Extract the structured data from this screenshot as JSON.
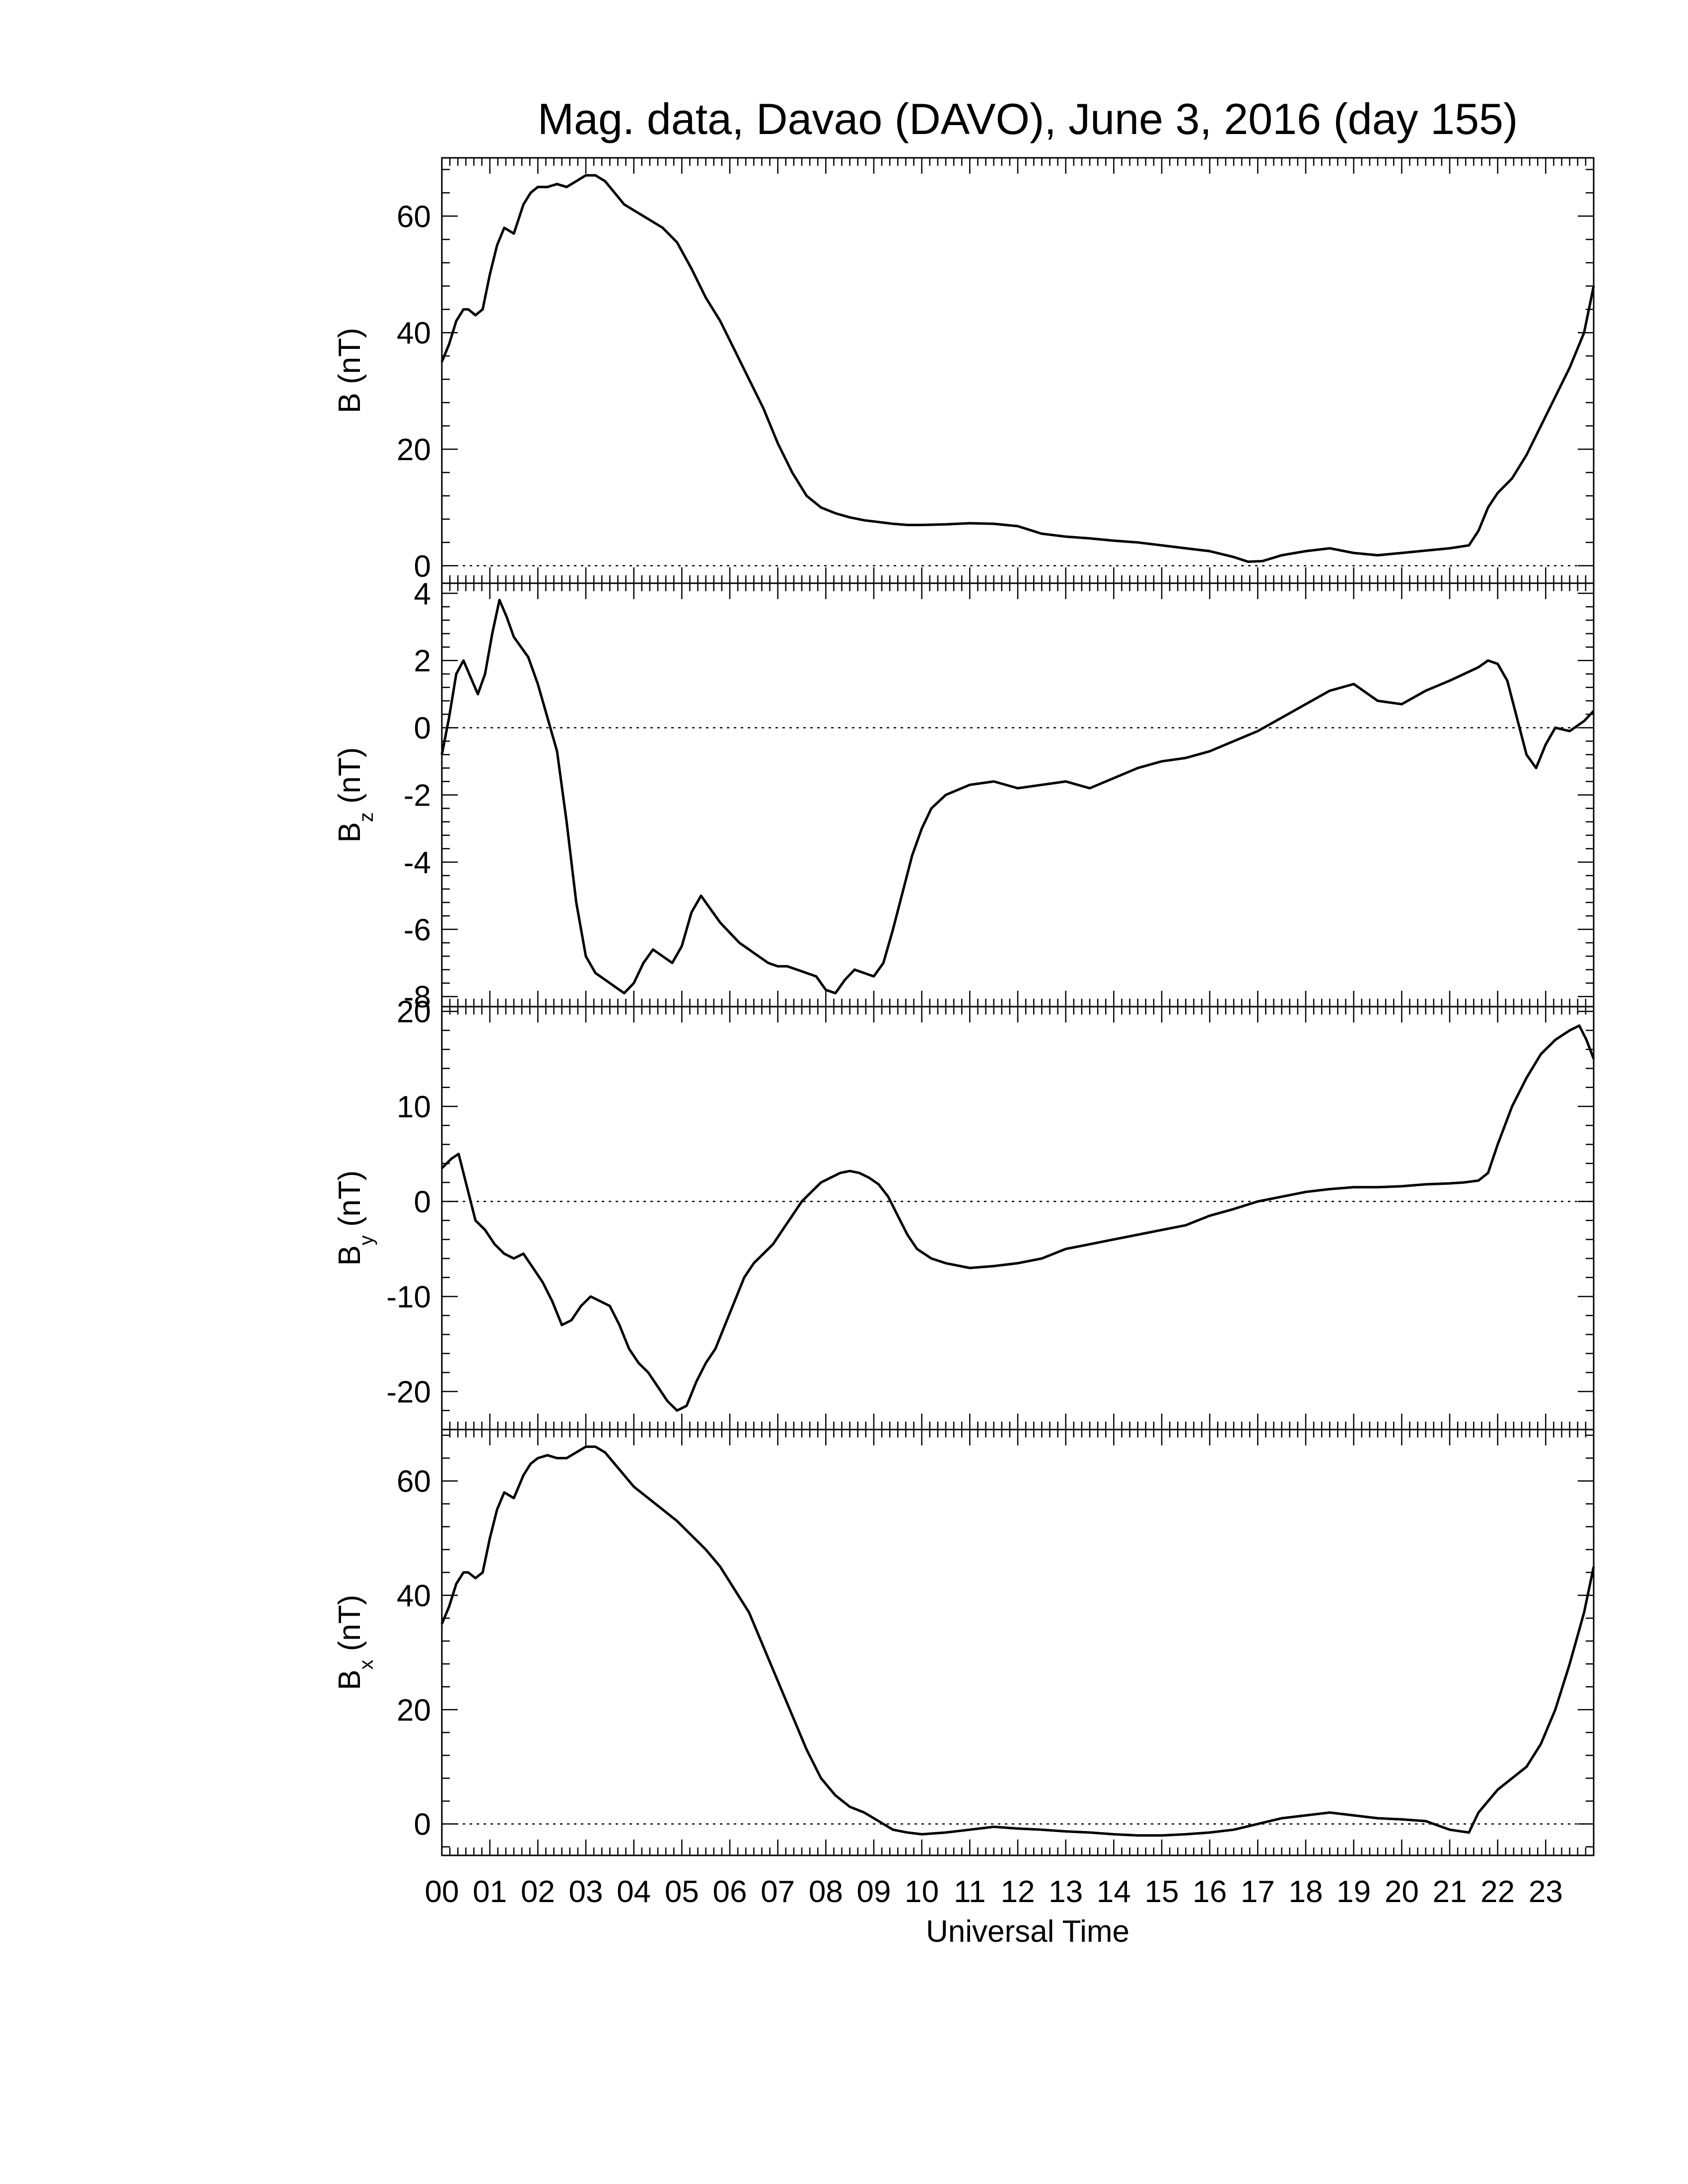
{
  "chart_data": {
    "type": "line",
    "title": "Mag. data, Davao (DAVO), June 3, 2016 (day 155)",
    "xlabel": "Universal Time",
    "x_ticks": [
      "00",
      "01",
      "02",
      "03",
      "04",
      "05",
      "06",
      "07",
      "08",
      "09",
      "10",
      "11",
      "12",
      "13",
      "14",
      "15",
      "16",
      "17",
      "18",
      "19",
      "20",
      "21",
      "22",
      "23"
    ],
    "xlim": [
      0,
      24
    ],
    "line_color": "#000000",
    "zero_line": "dotted",
    "panels": [
      {
        "ylabel_main": "B",
        "ylabel_sub": "",
        "ylabel_unit": "(nT)",
        "ylim": [
          -3,
          70
        ],
        "yticks": [
          "0",
          "20",
          "40",
          "60"
        ],
        "ytick_values": [
          0,
          20,
          40,
          60
        ],
        "x": [
          0,
          0.15,
          0.3,
          0.45,
          0.55,
          0.7,
          0.85,
          1.0,
          1.15,
          1.3,
          1.5,
          1.7,
          1.85,
          2.0,
          2.2,
          2.4,
          2.6,
          2.8,
          3.0,
          3.2,
          3.4,
          3.6,
          3.8,
          4.0,
          4.3,
          4.6,
          4.9,
          5.2,
          5.5,
          5.8,
          6.1,
          6.4,
          6.7,
          7.0,
          7.3,
          7.6,
          7.9,
          8.2,
          8.5,
          8.8,
          9.1,
          9.4,
          9.7,
          10.0,
          10.5,
          11.0,
          11.5,
          12.0,
          12.5,
          13.0,
          13.5,
          14.0,
          14.5,
          15.0,
          15.5,
          16.0,
          16.5,
          16.8,
          17.1,
          17.5,
          18.0,
          18.5,
          19.0,
          19.5,
          20.0,
          20.5,
          21.0,
          21.4,
          21.6,
          21.8,
          22.0,
          22.3,
          22.6,
          22.9,
          23.2,
          23.5,
          23.8,
          24.0
        ],
        "values": [
          35,
          38,
          42,
          44,
          44,
          43,
          44,
          50,
          55,
          58,
          57,
          62,
          64,
          65,
          65,
          65.5,
          65,
          66,
          67,
          67,
          66,
          64,
          62,
          61,
          59.5,
          58,
          55.5,
          51,
          46,
          42,
          37,
          32,
          27,
          21,
          16,
          12,
          10,
          9,
          8.3,
          7.8,
          7.5,
          7.2,
          7.0,
          7.0,
          7.1,
          7.3,
          7.2,
          6.8,
          5.5,
          5.0,
          4.7,
          4.3,
          4.0,
          3.5,
          3.0,
          2.5,
          1.5,
          0.7,
          0.8,
          1.8,
          2.5,
          3.0,
          2.2,
          1.8,
          2.2,
          2.6,
          3.0,
          3.5,
          6,
          10,
          12.5,
          15,
          19,
          24,
          29,
          34,
          40,
          48
        ]
      },
      {
        "ylabel_main": "B",
        "ylabel_sub": "z",
        "ylabel_unit": "(nT)",
        "ylim": [
          -8.3,
          4.3
        ],
        "yticks": [
          "-8",
          "-6",
          "-4",
          "-2",
          "0",
          "2",
          "4"
        ],
        "ytick_values": [
          -8,
          -6,
          -4,
          -2,
          0,
          2,
          4
        ],
        "x": [
          0,
          0.15,
          0.3,
          0.45,
          0.6,
          0.75,
          0.9,
          1.05,
          1.2,
          1.35,
          1.5,
          1.65,
          1.8,
          2.0,
          2.2,
          2.4,
          2.6,
          2.8,
          3.0,
          3.2,
          3.4,
          3.6,
          3.8,
          4.0,
          4.2,
          4.4,
          4.6,
          4.8,
          5.0,
          5.2,
          5.4,
          5.6,
          5.8,
          6.0,
          6.2,
          6.4,
          6.6,
          6.8,
          7.0,
          7.2,
          7.4,
          7.6,
          7.8,
          8.0,
          8.2,
          8.4,
          8.6,
          8.8,
          9.0,
          9.2,
          9.4,
          9.6,
          9.8,
          10.0,
          10.2,
          10.5,
          11.0,
          11.5,
          12.0,
          12.5,
          13.0,
          13.5,
          14.0,
          14.5,
          15.0,
          15.5,
          16.0,
          16.5,
          17.0,
          17.5,
          18.0,
          18.5,
          19.0,
          19.5,
          20.0,
          20.5,
          21.0,
          21.3,
          21.6,
          21.8,
          22.0,
          22.2,
          22.4,
          22.6,
          22.8,
          23.0,
          23.2,
          23.5,
          23.8,
          24.0
        ],
        "values": [
          -0.8,
          0.3,
          1.6,
          2.0,
          1.5,
          1.0,
          1.6,
          2.8,
          3.8,
          3.3,
          2.7,
          2.4,
          2.1,
          1.3,
          0.3,
          -0.7,
          -2.8,
          -5.2,
          -6.8,
          -7.3,
          -7.5,
          -7.7,
          -7.9,
          -7.6,
          -7.0,
          -6.6,
          -6.8,
          -7.0,
          -6.5,
          -5.5,
          -5.0,
          -5.4,
          -5.8,
          -6.1,
          -6.4,
          -6.6,
          -6.8,
          -7.0,
          -7.1,
          -7.1,
          -7.2,
          -7.3,
          -7.4,
          -7.8,
          -7.9,
          -7.5,
          -7.2,
          -7.3,
          -7.4,
          -7.0,
          -6.0,
          -4.9,
          -3.8,
          -3.0,
          -2.4,
          -2.0,
          -1.7,
          -1.6,
          -1.8,
          -1.7,
          -1.6,
          -1.8,
          -1.5,
          -1.2,
          -1.0,
          -0.9,
          -0.7,
          -0.4,
          -0.1,
          0.3,
          0.7,
          1.1,
          1.3,
          0.8,
          0.7,
          1.1,
          1.4,
          1.6,
          1.8,
          2.0,
          1.9,
          1.4,
          0.3,
          -0.8,
          -1.2,
          -0.5,
          0.0,
          -0.1,
          0.2,
          0.5
        ]
      },
      {
        "ylabel_main": "B",
        "ylabel_sub": "y",
        "ylabel_unit": "(nT)",
        "ylim": [
          -24,
          20.5
        ],
        "yticks": [
          "-20",
          "-10",
          "0",
          "10",
          "20"
        ],
        "ytick_values": [
          -20,
          -10,
          0,
          10,
          20
        ],
        "x": [
          0,
          0.2,
          0.35,
          0.5,
          0.7,
          0.9,
          1.1,
          1.3,
          1.5,
          1.7,
          1.9,
          2.1,
          2.3,
          2.5,
          2.7,
          2.9,
          3.1,
          3.3,
          3.5,
          3.7,
          3.9,
          4.1,
          4.3,
          4.5,
          4.7,
          4.9,
          5.1,
          5.3,
          5.5,
          5.7,
          5.9,
          6.1,
          6.3,
          6.5,
          6.7,
          6.9,
          7.1,
          7.3,
          7.5,
          7.7,
          7.9,
          8.1,
          8.3,
          8.5,
          8.7,
          8.9,
          9.1,
          9.3,
          9.5,
          9.7,
          9.9,
          10.2,
          10.5,
          11.0,
          11.5,
          12.0,
          12.5,
          13.0,
          13.5,
          14.0,
          14.5,
          15.0,
          15.5,
          16.0,
          16.5,
          17.0,
          17.5,
          18.0,
          18.5,
          19.0,
          19.5,
          20.0,
          20.5,
          21.0,
          21.3,
          21.6,
          21.8,
          22.0,
          22.3,
          22.6,
          22.9,
          23.2,
          23.5,
          23.7,
          23.85,
          24.0
        ],
        "values": [
          3.5,
          4.5,
          5.0,
          2.0,
          -2.0,
          -3.0,
          -4.5,
          -5.5,
          -6.0,
          -5.5,
          -7.0,
          -8.5,
          -10.5,
          -13.0,
          -12.5,
          -11.0,
          -10.0,
          -10.5,
          -11.0,
          -13.0,
          -15.5,
          -17.0,
          -18.0,
          -19.5,
          -21.0,
          -22.0,
          -21.5,
          -19.0,
          -17.0,
          -15.5,
          -13.0,
          -10.5,
          -8.0,
          -6.5,
          -5.5,
          -4.5,
          -3.0,
          -1.5,
          0.0,
          1.0,
          2.0,
          2.5,
          3.0,
          3.2,
          3.0,
          2.5,
          1.8,
          0.5,
          -1.5,
          -3.5,
          -5.0,
          -6.0,
          -6.5,
          -7.0,
          -6.8,
          -6.5,
          -6.0,
          -5.0,
          -4.5,
          -4.0,
          -3.5,
          -3.0,
          -2.5,
          -1.5,
          -0.8,
          0.0,
          0.5,
          1.0,
          1.3,
          1.5,
          1.5,
          1.6,
          1.8,
          1.9,
          2.0,
          2.2,
          3.0,
          6.0,
          10.0,
          13.0,
          15.5,
          17.0,
          18.0,
          18.5,
          17.0,
          15.0
        ]
      },
      {
        "ylabel_main": "B",
        "ylabel_sub": "x",
        "ylabel_unit": "(nT)",
        "ylim": [
          -5.5,
          69
        ],
        "yticks": [
          "0",
          "20",
          "40",
          "60"
        ],
        "ytick_values": [
          0,
          20,
          40,
          60
        ],
        "x": [
          0,
          0.15,
          0.3,
          0.45,
          0.55,
          0.7,
          0.85,
          1.0,
          1.15,
          1.3,
          1.5,
          1.7,
          1.85,
          2.0,
          2.2,
          2.4,
          2.6,
          2.8,
          3.0,
          3.2,
          3.4,
          3.6,
          3.8,
          4.0,
          4.3,
          4.6,
          4.9,
          5.2,
          5.5,
          5.8,
          6.1,
          6.4,
          6.7,
          7.0,
          7.3,
          7.6,
          7.9,
          8.2,
          8.5,
          8.8,
          9.1,
          9.4,
          9.7,
          10.0,
          10.5,
          11.0,
          11.5,
          12.0,
          12.5,
          13.0,
          13.5,
          14.0,
          14.5,
          15.0,
          15.5,
          16.0,
          16.5,
          17.0,
          17.5,
          18.0,
          18.5,
          19.0,
          19.5,
          20.0,
          20.5,
          21.0,
          21.4,
          21.6,
          21.8,
          22.0,
          22.3,
          22.6,
          22.9,
          23.2,
          23.5,
          23.8,
          24.0
        ],
        "values": [
          35,
          38,
          42,
          44,
          44,
          43,
          44,
          50,
          55,
          58,
          57,
          61,
          63,
          64,
          64.5,
          64,
          64,
          65,
          66,
          66,
          65,
          63,
          61,
          59,
          57,
          55,
          53,
          50.5,
          48,
          45,
          41,
          37,
          31,
          25,
          19,
          13,
          8,
          5,
          3,
          2,
          0.5,
          -1,
          -1.5,
          -1.8,
          -1.5,
          -1.0,
          -0.5,
          -0.8,
          -1.0,
          -1.3,
          -1.5,
          -1.8,
          -2.0,
          -2.0,
          -1.8,
          -1.5,
          -1.0,
          0,
          1.0,
          1.5,
          2.0,
          1.5,
          1.0,
          0.8,
          0.5,
          -1,
          -1.5,
          2,
          4,
          6,
          8,
          10,
          14,
          20,
          28,
          37,
          45
        ]
      }
    ]
  }
}
